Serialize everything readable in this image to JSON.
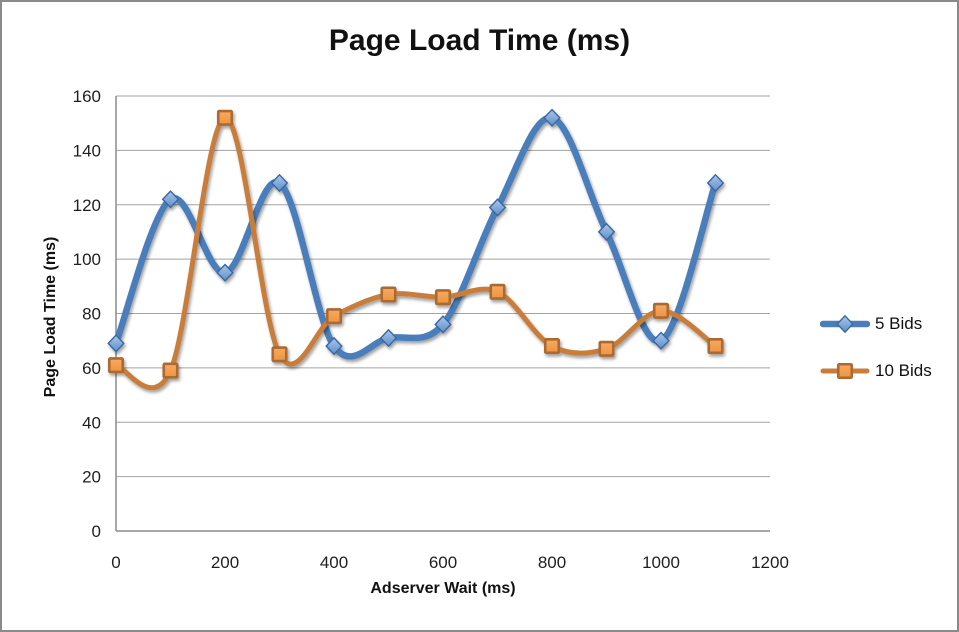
{
  "chart_data": {
    "type": "line",
    "title": "Page Load Time (ms)",
    "xlabel": "Adserver Wait (ms)",
    "ylabel": "Page Load Time (ms)",
    "x": [
      0,
      100,
      200,
      300,
      400,
      500,
      600,
      700,
      800,
      900,
      1000,
      1100
    ],
    "series": [
      {
        "name": "5 Bids",
        "marker": "diamond",
        "line_color": "#4A7EBB",
        "line_width": 6.5,
        "marker_fill_top": "#A9C7EA",
        "marker_fill_bottom": "#5E8FCB",
        "marker_border": "#3B66A0",
        "values": [
          69,
          122,
          95,
          128,
          68,
          71,
          76,
          119,
          152,
          110,
          70,
          128
        ]
      },
      {
        "name": "10 Bids",
        "marker": "square",
        "line_color": "#C87D3B",
        "line_width": 5,
        "marker_fill_top": "#F7AA60",
        "marker_fill_bottom": "#EE9440",
        "marker_border": "#AA6A30",
        "values": [
          61,
          59,
          152,
          65,
          79,
          87,
          86,
          88,
          68,
          67,
          81,
          68
        ]
      }
    ],
    "x_ticks": [
      0,
      200,
      400,
      600,
      800,
      1000,
      1200
    ],
    "y_ticks": [
      0,
      20,
      40,
      60,
      80,
      100,
      120,
      140,
      160
    ],
    "xlim": [
      0,
      1200
    ],
    "ylim": [
      0,
      160
    ],
    "grid": "horizontal",
    "smooth": true,
    "legend_position": "right"
  },
  "colors": {
    "background": "#FFFFFF",
    "frame_border": "#8A8A8A",
    "gridline": "#A3A3A3",
    "axis_line": "#8C8C8C",
    "text": "#1F1F1F"
  }
}
